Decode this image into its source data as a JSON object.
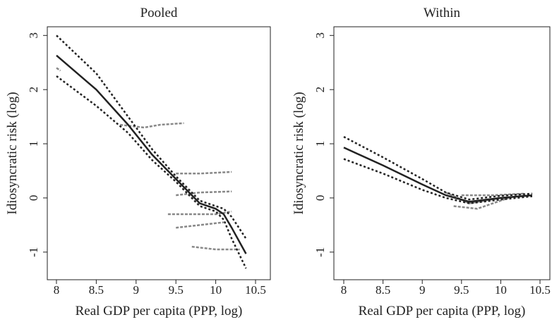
{
  "chart_data": [
    {
      "type": "line",
      "title": "Pooled",
      "xlabel": "Real GDP per capita (PPP, log)",
      "ylabel": "Idiosyncratic risk (log)",
      "xlim": [
        7.885,
        10.686
      ],
      "ylim": [
        -1.51,
        3.16
      ],
      "xticks": [
        8,
        8.5,
        9,
        9.5,
        10,
        10.5
      ],
      "yticks": [
        -1,
        0,
        1,
        2,
        3
      ],
      "series": [
        {
          "style": "dashed",
          "color": "#888888",
          "x": [
            8.0,
            8.05
          ],
          "values": [
            2.4,
            2.35
          ]
        },
        {
          "style": "dashed",
          "color": "#888888",
          "x": [
            8.8,
            9.1,
            9.3,
            9.6
          ],
          "values": [
            1.35,
            1.3,
            1.35,
            1.38
          ]
        },
        {
          "style": "dashed",
          "color": "#888888",
          "x": [
            9.5,
            9.8,
            10.2
          ],
          "values": [
            0.45,
            0.45,
            0.48
          ]
        },
        {
          "style": "dashed",
          "color": "#888888",
          "x": [
            9.5,
            9.8,
            10.2
          ],
          "values": [
            0.05,
            0.1,
            0.12
          ]
        },
        {
          "style": "dashed",
          "color": "#888888",
          "x": [
            9.4,
            9.7,
            10.0,
            10.2
          ],
          "values": [
            -0.3,
            -0.3,
            -0.3,
            -0.25
          ]
        },
        {
          "style": "dashed",
          "color": "#888888",
          "x": [
            9.5,
            9.8,
            10.1
          ],
          "values": [
            -0.55,
            -0.5,
            -0.45
          ]
        },
        {
          "style": "dashed",
          "color": "#888888",
          "x": [
            9.7,
            10.0,
            10.3
          ],
          "values": [
            -0.9,
            -0.95,
            -0.95
          ]
        },
        {
          "style": "dotted",
          "color": "#222222",
          "x": [
            8,
            8.5,
            8.9,
            9.2,
            9.5,
            9.8,
            10,
            10.1,
            10.2,
            10.38
          ],
          "values": [
            3.0,
            2.3,
            1.5,
            0.9,
            0.4,
            -0.05,
            -0.15,
            -0.2,
            -0.35,
            -0.75
          ]
        },
        {
          "style": "dotted",
          "color": "#222222",
          "x": [
            8,
            8.5,
            8.9,
            9.2,
            9.5,
            9.8,
            10,
            10.1,
            10.2,
            10.38
          ],
          "values": [
            2.25,
            1.7,
            1.2,
            0.7,
            0.3,
            -0.15,
            -0.25,
            -0.4,
            -0.75,
            -1.3
          ]
        },
        {
          "style": "solid",
          "color": "#222222",
          "x": [
            8,
            8.5,
            8.9,
            9.2,
            9.5,
            9.8,
            10,
            10.1,
            10.2,
            10.38
          ],
          "values": [
            2.63,
            2.0,
            1.35,
            0.8,
            0.35,
            -0.1,
            -0.2,
            -0.3,
            -0.55,
            -1.03
          ]
        }
      ]
    },
    {
      "type": "line",
      "title": "Within",
      "xlabel": "Real GDP per capita (PPP, log)",
      "ylabel": "Idiosyncratic risk (log)",
      "xlim": [
        7.874,
        10.626
      ],
      "ylim": [
        -1.51,
        3.16
      ],
      "xticks": [
        8,
        8.5,
        9,
        9.5,
        10,
        10.5
      ],
      "yticks": [
        -1,
        0,
        1,
        2,
        3
      ],
      "series": [
        {
          "style": "dashed",
          "color": "#888888",
          "x": [
            9.3,
            9.6,
            10,
            10.4
          ],
          "values": [
            0.1,
            -0.1,
            0,
            0.05
          ]
        },
        {
          "style": "dashed",
          "color": "#888888",
          "x": [
            9.4,
            9.7,
            10.1
          ],
          "values": [
            -0.15,
            -0.2,
            0.0
          ]
        },
        {
          "style": "dashed",
          "color": "#888888",
          "x": [
            9.5,
            9.9,
            10.3
          ],
          "values": [
            0.05,
            0.05,
            0.08
          ]
        },
        {
          "style": "dotted",
          "color": "#222222",
          "x": [
            8,
            8.5,
            9,
            9.3,
            9.6,
            10,
            10.4
          ],
          "values": [
            1.13,
            0.75,
            0.35,
            0.1,
            -0.03,
            0.04,
            0.08
          ]
        },
        {
          "style": "dotted",
          "color": "#222222",
          "x": [
            8,
            8.5,
            9,
            9.3,
            9.6,
            10,
            10.4
          ],
          "values": [
            0.72,
            0.45,
            0.15,
            0.0,
            -0.1,
            -0.03,
            0.03
          ]
        },
        {
          "style": "solid",
          "color": "#222222",
          "x": [
            8,
            8.5,
            9,
            9.3,
            9.6,
            10,
            10.4
          ],
          "values": [
            0.93,
            0.6,
            0.25,
            0.05,
            -0.07,
            0,
            0.05
          ]
        }
      ]
    }
  ]
}
